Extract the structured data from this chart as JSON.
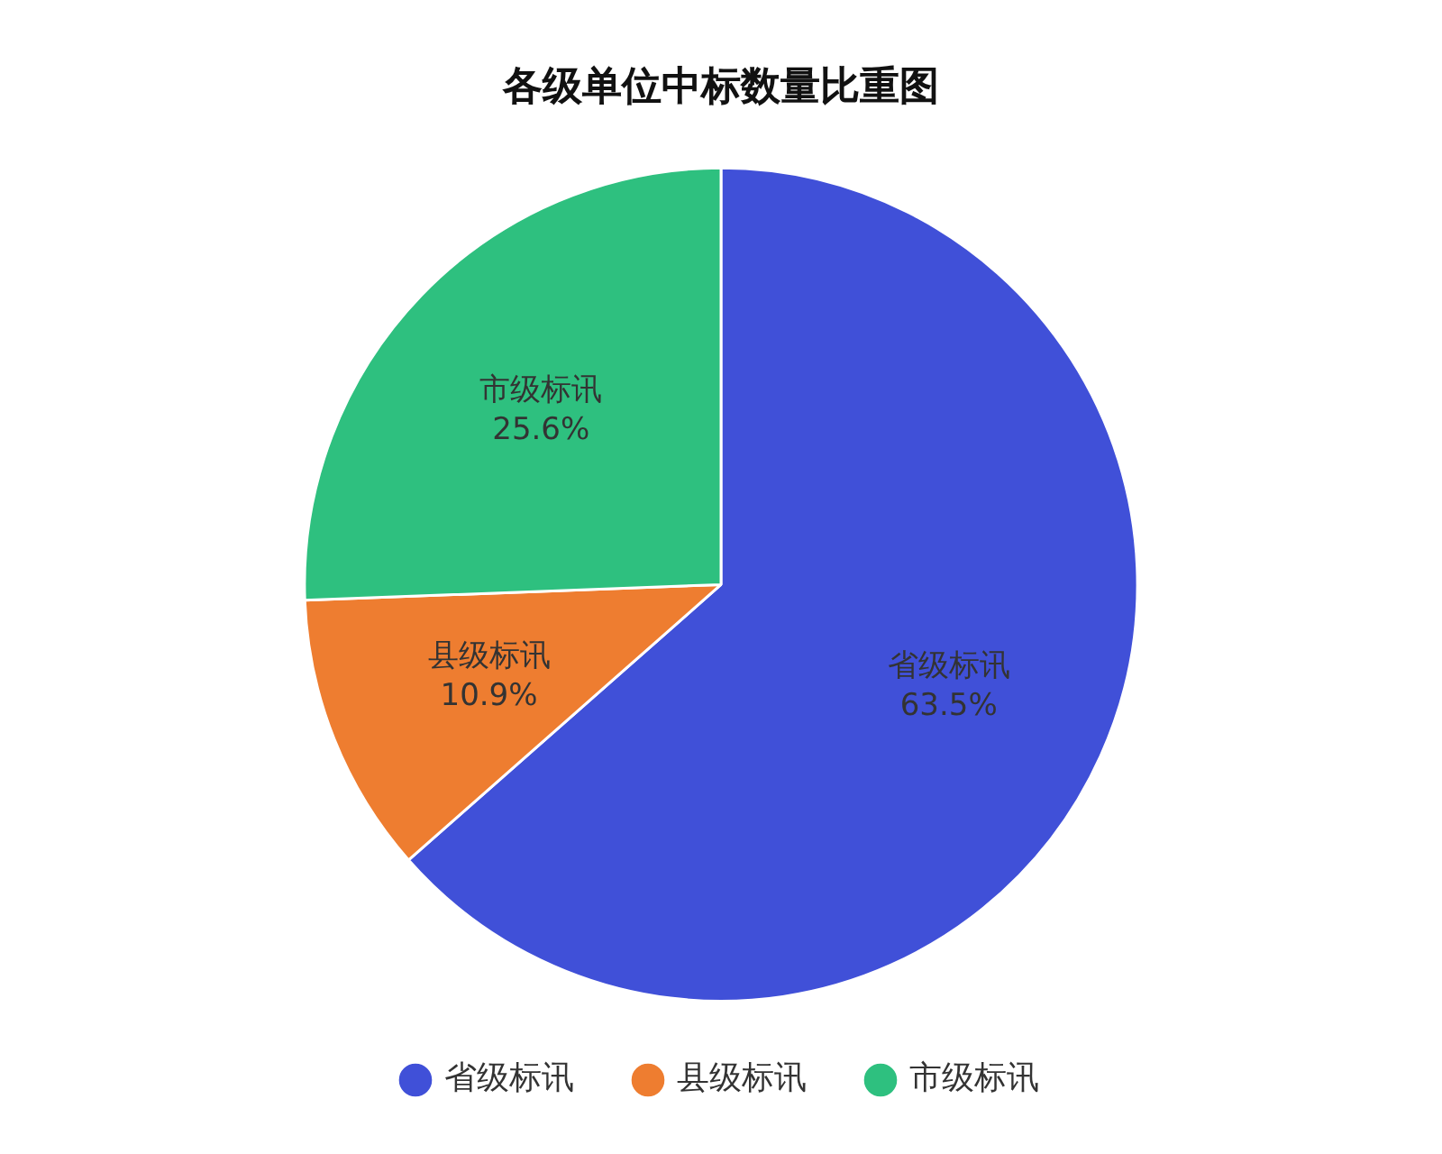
{
  "chart_data": {
    "type": "pie",
    "title": "各级单位中标数量比重图",
    "categories": [
      "省级标讯",
      "县级标讯",
      "市级标讯"
    ],
    "values": [
      63.5,
      10.9,
      25.6
    ],
    "colors": [
      "#4050d8",
      "#ee7d30",
      "#2ec07f"
    ],
    "value_labels": [
      "63.5%",
      "10.9%",
      "25.6%"
    ],
    "legend": "bottom"
  }
}
